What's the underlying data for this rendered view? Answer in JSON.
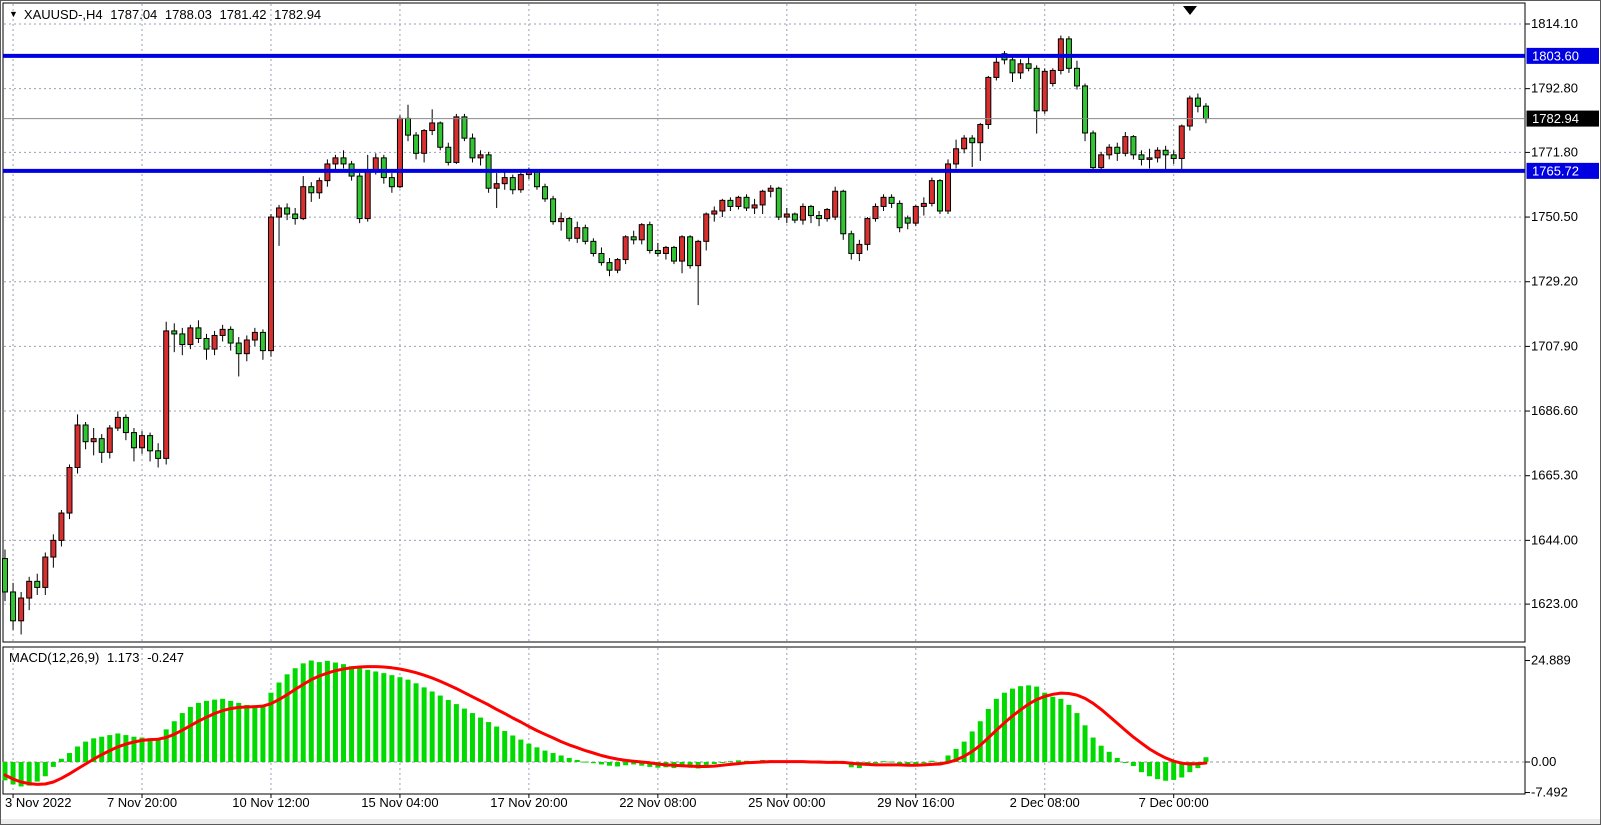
{
  "header": {
    "marker": "▼",
    "symbol_period": "XAUUSD-,H4",
    "open": "1787.04",
    "high": "1788.03",
    "low": "1781.42",
    "close": "1782.94"
  },
  "macd_header": {
    "name": "MACD(12,26,9)",
    "main_value": "1.173",
    "signal_value": "-0.247"
  },
  "chart_data": {
    "type": "candlestick",
    "title": "XAUUSD-,H4 1787.04 1788.03 1781.42 1782.94",
    "symbol": "XAUUSD-",
    "timeframe": "H4",
    "legend_position": "top-left",
    "grid": true,
    "price_axis": {
      "labels": [
        "1814.10",
        "1792.80",
        "1771.80",
        "1750.50",
        "1729.20",
        "1707.90",
        "1686.60",
        "1665.30",
        "1644.00",
        "1623.00"
      ],
      "values": [
        1814.1,
        1792.8,
        1771.8,
        1750.5,
        1729.2,
        1707.9,
        1686.6,
        1665.3,
        1644.0,
        1623.0
      ],
      "range": [
        1612.0,
        1821.0
      ]
    },
    "horizontal_lines": [
      {
        "price": 1803.6,
        "label": "1803.60"
      },
      {
        "price": 1765.72,
        "label": "1765.72"
      }
    ],
    "current_price": {
      "price": 1782.94,
      "label": "1782.94"
    },
    "time_axis": {
      "labels": [
        {
          "text": "3 Nov 2022",
          "index": 1
        },
        {
          "text": "7 Nov 20:00",
          "index": 17
        },
        {
          "text": "10 Nov 12:00",
          "index": 33
        },
        {
          "text": "15 Nov 04:00",
          "index": 49
        },
        {
          "text": "17 Nov 20:00",
          "index": 65
        },
        {
          "text": "22 Nov 08:00",
          "index": 81
        },
        {
          "text": "25 Nov 00:00",
          "index": 97
        },
        {
          "text": "29 Nov 16:00",
          "index": 113
        },
        {
          "text": "2 Dec 08:00",
          "index": 129
        },
        {
          "text": "7 Dec 00:00",
          "index": 145
        }
      ]
    },
    "candles_ohlc": [
      [
        1638,
        1641,
        1624,
        1627
      ],
      [
        1627,
        1630,
        1614.5,
        1617.5
      ],
      [
        1617.5,
        1627,
        1613,
        1625
      ],
      [
        1625,
        1632,
        1621,
        1630.5
      ],
      [
        1630.5,
        1633,
        1626,
        1628.5
      ],
      [
        1628.5,
        1640,
        1626,
        1638.5
      ],
      [
        1638.5,
        1646,
        1635,
        1644
      ],
      [
        1644,
        1654,
        1642,
        1653
      ],
      [
        1653,
        1669,
        1651,
        1668
      ],
      [
        1668,
        1685.5,
        1666,
        1682
      ],
      [
        1682,
        1683,
        1674,
        1676.5
      ],
      [
        1676.5,
        1681,
        1672,
        1677.5
      ],
      [
        1677.5,
        1679,
        1669.5,
        1673
      ],
      [
        1673,
        1682,
        1671,
        1681
      ],
      [
        1681,
        1686.5,
        1680,
        1684.5
      ],
      [
        1684.5,
        1685.5,
        1677,
        1679.5
      ],
      [
        1679.5,
        1681,
        1670,
        1674.5
      ],
      [
        1674.5,
        1680,
        1672.5,
        1678.5
      ],
      [
        1678.5,
        1679.5,
        1670,
        1673.5
      ],
      [
        1673.5,
        1676,
        1668,
        1671
      ],
      [
        1671,
        1716,
        1669,
        1713
      ],
      [
        1713,
        1715.5,
        1706,
        1712
      ],
      [
        1712,
        1714,
        1705,
        1708.5
      ],
      [
        1708.5,
        1715,
        1707,
        1714
      ],
      [
        1714,
        1716.5,
        1709,
        1710.5
      ],
      [
        1710.5,
        1712,
        1703.5,
        1707
      ],
      [
        1707,
        1713,
        1705,
        1711.5
      ],
      [
        1711.5,
        1715,
        1709.5,
        1713.5
      ],
      [
        1713.5,
        1714.5,
        1706.5,
        1709
      ],
      [
        1709,
        1711,
        1698,
        1705.5
      ],
      [
        1705.5,
        1711.5,
        1703,
        1710
      ],
      [
        1710,
        1714,
        1708,
        1712.5
      ],
      [
        1712.5,
        1713.5,
        1703.5,
        1706.5
      ],
      [
        1706.5,
        1751.5,
        1704.5,
        1750.5
      ],
      [
        1750.5,
        1754.5,
        1741,
        1753.5
      ],
      [
        1753.5,
        1755,
        1749.5,
        1751.5
      ],
      [
        1751.5,
        1753.5,
        1748,
        1750
      ],
      [
        1750,
        1764,
        1749.5,
        1760.5
      ],
      [
        1760.5,
        1762,
        1755.5,
        1758.5
      ],
      [
        1758.5,
        1763.5,
        1756.5,
        1762.5
      ],
      [
        1762.5,
        1769.5,
        1760.5,
        1768
      ],
      [
        1768,
        1771,
        1765.5,
        1770
      ],
      [
        1770,
        1772.5,
        1766.5,
        1768
      ],
      [
        1768,
        1769,
        1762.5,
        1764
      ],
      [
        1764,
        1765,
        1748.5,
        1750
      ],
      [
        1750,
        1771,
        1749,
        1766
      ],
      [
        1766,
        1771.5,
        1764.5,
        1770
      ],
      [
        1770,
        1771,
        1761.5,
        1763.5
      ],
      [
        1763.5,
        1765,
        1758.5,
        1760.5
      ],
      [
        1760.5,
        1784,
        1760,
        1783
      ],
      [
        1783,
        1787.5,
        1775.5,
        1777.5
      ],
      [
        1777.5,
        1778.5,
        1769.5,
        1771.5
      ],
      [
        1771.5,
        1779.5,
        1768.5,
        1779
      ],
      [
        1779,
        1786,
        1777.5,
        1781.5
      ],
      [
        1781.5,
        1782,
        1772.5,
        1773.5
      ],
      [
        1773.5,
        1775,
        1767.5,
        1768.5
      ],
      [
        1768.5,
        1784.5,
        1768,
        1783.5
      ],
      [
        1783.5,
        1784.5,
        1775.5,
        1776.5
      ],
      [
        1776.5,
        1778,
        1768.5,
        1770
      ],
      [
        1770,
        1772.5,
        1767.5,
        1771
      ],
      [
        1771,
        1772,
        1758.5,
        1760
      ],
      [
        1760,
        1765,
        1753.5,
        1761.5
      ],
      [
        1761.5,
        1766,
        1759.5,
        1763.5
      ],
      [
        1763.5,
        1764.5,
        1758,
        1759.5
      ],
      [
        1759.5,
        1766,
        1758.5,
        1764.5
      ],
      [
        1764.5,
        1766.8,
        1763,
        1765.5
      ],
      [
        1765.5,
        1766,
        1759.5,
        1760.5
      ],
      [
        1760.5,
        1761.5,
        1755.5,
        1756.5
      ],
      [
        1756.5,
        1757.5,
        1748,
        1749
      ],
      [
        1749,
        1752,
        1746,
        1750
      ],
      [
        1750,
        1750.5,
        1742.5,
        1743.5
      ],
      [
        1743.5,
        1749,
        1742,
        1747
      ],
      [
        1747,
        1748,
        1741.5,
        1742.5
      ],
      [
        1742.5,
        1743.5,
        1737.5,
        1738.5
      ],
      [
        1738.5,
        1740.5,
        1734.5,
        1735.5
      ],
      [
        1735.5,
        1737,
        1731,
        1733
      ],
      [
        1733,
        1737,
        1732,
        1736.5
      ],
      [
        1736.5,
        1744.5,
        1735,
        1744
      ],
      [
        1744,
        1746,
        1741.5,
        1743
      ],
      [
        1743,
        1748.5,
        1741.5,
        1748
      ],
      [
        1748,
        1749,
        1738.5,
        1739.5
      ],
      [
        1739.5,
        1742,
        1737.5,
        1738.5
      ],
      [
        1738.5,
        1741,
        1736.5,
        1740.5
      ],
      [
        1740.5,
        1741,
        1735,
        1736
      ],
      [
        1736,
        1744.5,
        1732,
        1744
      ],
      [
        1744,
        1744.5,
        1733.5,
        1734.5
      ],
      [
        1734.5,
        1743,
        1721.5,
        1742.5
      ],
      [
        1742.5,
        1752,
        1739.5,
        1751.5
      ],
      [
        1751.5,
        1754,
        1749,
        1752.5
      ],
      [
        1752.5,
        1756.5,
        1750.5,
        1756
      ],
      [
        1756,
        1757,
        1752.5,
        1754
      ],
      [
        1754,
        1757.5,
        1753,
        1757
      ],
      [
        1757,
        1758,
        1752.5,
        1753.5
      ],
      [
        1753.5,
        1756.5,
        1751.5,
        1754.5
      ],
      [
        1754.5,
        1759.5,
        1751.5,
        1759
      ],
      [
        1759,
        1761,
        1757,
        1760
      ],
      [
        1760,
        1760.5,
        1749.5,
        1750.5
      ],
      [
        1750.5,
        1753.5,
        1748.5,
        1751.5
      ],
      [
        1751.5,
        1752,
        1748.5,
        1749.5
      ],
      [
        1749.5,
        1755,
        1748,
        1754
      ],
      [
        1754,
        1754.5,
        1748.5,
        1751
      ],
      [
        1751,
        1752.5,
        1747.5,
        1750
      ],
      [
        1750,
        1753.5,
        1749,
        1753
      ],
      [
        1750.5,
        1760.5,
        1749.5,
        1759
      ],
      [
        1759,
        1759.5,
        1743,
        1745
      ],
      [
        1745,
        1746,
        1736.5,
        1738.5
      ],
      [
        1738.5,
        1743,
        1736,
        1741.5
      ],
      [
        1741.5,
        1750.5,
        1739.5,
        1750
      ],
      [
        1750,
        1755,
        1749,
        1754
      ],
      [
        1754,
        1758,
        1752.5,
        1757
      ],
      [
        1757,
        1758,
        1753.5,
        1755
      ],
      [
        1755,
        1756,
        1745.5,
        1747
      ],
      [
        1750.2,
        1751,
        1746.5,
        1748.5
      ],
      [
        1748.5,
        1754.5,
        1747.5,
        1754
      ],
      [
        1754,
        1757,
        1751,
        1755
      ],
      [
        1755,
        1763.5,
        1754,
        1762.5
      ],
      [
        1762.5,
        1763,
        1751.5,
        1752.5
      ],
      [
        1752.5,
        1769.5,
        1751.5,
        1768
      ],
      [
        1768,
        1776,
        1766.5,
        1773
      ],
      [
        1773,
        1777.5,
        1771.5,
        1776.5
      ],
      [
        1776.5,
        1777.5,
        1767,
        1775
      ],
      [
        1775,
        1781.5,
        1769,
        1781
      ],
      [
        1781,
        1797,
        1779.5,
        1796.5
      ],
      [
        1796.5,
        1803.3,
        1795.5,
        1801.5
      ],
      [
        1804.3,
        1805.2,
        1800.8,
        1802.3
      ],
      [
        1802.3,
        1803.5,
        1795,
        1798
      ],
      [
        1798,
        1802.5,
        1796,
        1801
      ],
      [
        1801,
        1804,
        1798.5,
        1799.5
      ],
      [
        1799.5,
        1800.5,
        1778,
        1785.5
      ],
      [
        1785.5,
        1799.5,
        1784.5,
        1798.5
      ],
      [
        1794.5,
        1799.5,
        1793.5,
        1798.8
      ],
      [
        1798.8,
        1810.3,
        1797.5,
        1809.2
      ],
      [
        1809.2,
        1810.1,
        1798,
        1799.5
      ],
      [
        1799.5,
        1802,
        1792.5,
        1793.7
      ],
      [
        1793.7,
        1794.5,
        1775.5,
        1778.2
      ],
      [
        1778.2,
        1779,
        1765.8,
        1766.8
      ],
      [
        1766.8,
        1772,
        1765.5,
        1771
      ],
      [
        1771,
        1774.5,
        1769.5,
        1773.5
      ],
      [
        1773.5,
        1775,
        1769,
        1771.5
      ],
      [
        1771.5,
        1778.5,
        1770.5,
        1777
      ],
      [
        1777,
        1777.5,
        1769.5,
        1771
      ],
      [
        1771,
        1772.5,
        1767.5,
        1769.5
      ],
      [
        1769.5,
        1773,
        1766.5,
        1770
      ],
      [
        1770,
        1773.5,
        1768.5,
        1772.5
      ],
      [
        1772.5,
        1774,
        1766,
        1771
      ],
      [
        1771,
        1772.5,
        1768,
        1769.8
      ],
      [
        1769.8,
        1781,
        1766,
        1780.5
      ],
      [
        1780.5,
        1790.5,
        1779,
        1789.7
      ],
      [
        1789.7,
        1791.2,
        1785,
        1787
      ],
      [
        1787.04,
        1788.03,
        1781.42,
        1782.94
      ]
    ],
    "macd": {
      "label": "MACD(12,26,9)",
      "axis": [
        {
          "value": 24.889,
          "label": "24.889"
        },
        {
          "value": 0.0,
          "label": "0.00"
        },
        {
          "value": -7.492,
          "label": "-7.492"
        }
      ],
      "histogram": [
        -4.5,
        -5.5,
        -6,
        -5.8,
        -4.8,
        -3.5,
        -1.2,
        0.8,
        2.2,
        3.8,
        5,
        5.8,
        6.2,
        6.6,
        7,
        6.6,
        6.2,
        6,
        5.8,
        5.6,
        8,
        10,
        12,
        13.5,
        14.5,
        15,
        15.3,
        15.5,
        15,
        14.5,
        14,
        13.8,
        14,
        17,
        19.5,
        21.5,
        23,
        24.2,
        24.889,
        24.5,
        24.8,
        24.4,
        24,
        23.5,
        23,
        22.6,
        22.2,
        21.8,
        21.3,
        20.8,
        20.2,
        19.3,
        18.3,
        17.3,
        16.3,
        15.2,
        14.2,
        13.1,
        12,
        10.9,
        9.8,
        8.7,
        7.6,
        6.5,
        5.5,
        4.5,
        3.6,
        2.8,
        2.2,
        1.6,
        1,
        0.5,
        0.1,
        -0.3,
        -0.6,
        -0.9,
        -1.1,
        -0.8,
        -0.6,
        -0.9,
        -1.2,
        -1.4,
        -1.3,
        -1.5,
        -1.2,
        -1.4,
        -1.6,
        -0.9,
        -0.5,
        -0.2,
        0.2,
        0.4,
        0.3,
        0.2,
        0.5,
        0.4,
        0.1,
        0.1,
        -0.1,
        0.2,
        -0.2,
        -0.4,
        -0.3,
        0.3,
        -0.5,
        -1.3,
        -1.5,
        -0.9,
        -0.3,
        0.2,
        0.1,
        -0.6,
        -0.9,
        -0.5,
        -0.3,
        0.3,
        -0.2,
        1.6,
        3.2,
        5,
        7.5,
        10,
        13,
        15.5,
        17,
        18,
        18.6,
        18.8,
        18.5,
        17,
        16,
        15.5,
        14,
        12,
        9,
        6,
        4,
        2.5,
        1,
        0,
        -1,
        -2.5,
        -3.5,
        -4.2,
        -4.6,
        -4.4,
        -3.8,
        -2.5,
        -1.5,
        1.173
      ],
      "signal": [
        -3.2,
        -4.2,
        -4.9,
        -5.3,
        -5.5,
        -5.4,
        -4.9,
        -4,
        -2.9,
        -1.7,
        -0.5,
        0.7,
        1.8,
        2.8,
        3.7,
        4.4,
        4.9,
        5.3,
        5.5,
        5.6,
        6,
        6.8,
        7.8,
        8.9,
        10,
        11,
        11.9,
        12.6,
        13.1,
        13.4,
        13.5,
        13.6,
        13.7,
        14.3,
        15.3,
        16.5,
        17.8,
        19,
        20.2,
        21.1,
        21.8,
        22.4,
        22.8,
        23.1,
        23.3,
        23.4,
        23.4,
        23.3,
        23.1,
        22.8,
        22.4,
        21.9,
        21.3,
        20.6,
        19.8,
        18.9,
        18,
        17,
        16,
        15,
        14,
        12.9,
        11.9,
        10.8,
        9.8,
        8.7,
        7.7,
        6.8,
        5.9,
        5,
        4.2,
        3.5,
        2.8,
        2.2,
        1.6,
        1.1,
        0.7,
        0.4,
        0.2,
        0,
        -0.2,
        -0.5,
        -0.7,
        -0.8,
        -0.9,
        -1,
        -1.1,
        -1.1,
        -1,
        -0.8,
        -0.6,
        -0.4,
        -0.2,
        -0.1,
        0,
        0.1,
        0.1,
        0.1,
        0.1,
        0.1,
        0,
        0,
        -0.1,
        -0.1,
        -0.1,
        -0.3,
        -0.5,
        -0.6,
        -0.7,
        -0.7,
        -0.7,
        -0.7,
        -0.8,
        -0.8,
        -0.7,
        -0.6,
        -0.5,
        -0.1,
        0.5,
        1.4,
        2.6,
        4.1,
        5.9,
        7.8,
        9.6,
        11.3,
        12.8,
        14.2,
        15.3,
        16.1,
        16.6,
        16.9,
        16.8,
        16.4,
        15.6,
        14.4,
        12.9,
        11.2,
        9.5,
        7.8,
        6.1,
        4.6,
        3.2,
        2,
        1,
        0.2,
        -0.3,
        -0.5,
        -0.45,
        -0.247
      ]
    },
    "colors": {
      "bull_candle": "#d8302f",
      "bear_candle": "#33c433",
      "candle_outline": "#000000",
      "macd_histogram": "#00da00",
      "macd_signal": "#ff0000",
      "hline": "#0000e0",
      "current_line": "#8a8a8a",
      "current_tag_bg": "#000000",
      "grid": "#98a0b5",
      "background": "#ffffff",
      "text": "#000000"
    }
  }
}
